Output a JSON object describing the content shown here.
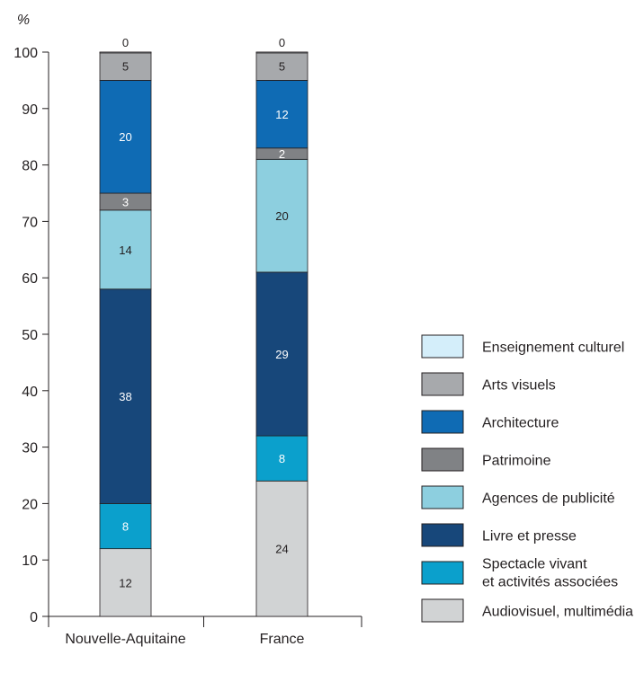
{
  "chart_data": {
    "type": "bar",
    "stacked": true,
    "y_unit": "%",
    "ylim": [
      0,
      100
    ],
    "yticks": [
      0,
      10,
      20,
      30,
      40,
      50,
      60,
      70,
      80,
      90,
      100
    ],
    "categories": [
      "Nouvelle-Aquitaine",
      "France"
    ],
    "legend_position": "right",
    "series": [
      {
        "name": "Audiovisuel, multimédia",
        "values": [
          12,
          24
        ],
        "color": "#d1d3d4",
        "label_color": "#231f20"
      },
      {
        "name": "Spectacle vivant et activités associées",
        "values": [
          8,
          8
        ],
        "color": "#0ba0cc",
        "label_color": "#ffffff"
      },
      {
        "name": "Livre et presse",
        "values": [
          38,
          29
        ],
        "color": "#17477a",
        "label_color": "#ffffff"
      },
      {
        "name": "Agences de publicité",
        "values": [
          14,
          20
        ],
        "color": "#8dcfdf",
        "label_color": "#231f20"
      },
      {
        "name": "Patrimoine",
        "values": [
          3,
          2
        ],
        "color": "#808285",
        "label_color": "#ffffff"
      },
      {
        "name": "Architecture",
        "values": [
          20,
          12
        ],
        "color": "#0f6bb4",
        "label_color": "#ffffff"
      },
      {
        "name": "Arts visuels",
        "values": [
          5,
          5
        ],
        "color": "#a7a9ac",
        "label_color": "#231f20"
      },
      {
        "name": "Enseignement culturel",
        "values": [
          0,
          0
        ],
        "color": "#d4eefa",
        "label_color": "#231f20"
      }
    ],
    "legend_items": [
      {
        "lines": [
          "Enseignement culturel"
        ],
        "color": "#d4eefa"
      },
      {
        "lines": [
          "Arts visuels"
        ],
        "color": "#a7a9ac"
      },
      {
        "lines": [
          "Architecture"
        ],
        "color": "#0f6bb4"
      },
      {
        "lines": [
          "Patrimoine"
        ],
        "color": "#808285"
      },
      {
        "lines": [
          "Agences de publicité"
        ],
        "color": "#8dcfdf"
      },
      {
        "lines": [
          "Livre et presse"
        ],
        "color": "#17477a"
      },
      {
        "lines": [
          "Spectacle vivant",
          "et activités associées"
        ],
        "color": "#0ba0cc"
      },
      {
        "lines": [
          "Audiovisuel, multimédia"
        ],
        "color": "#d1d3d4"
      }
    ]
  }
}
